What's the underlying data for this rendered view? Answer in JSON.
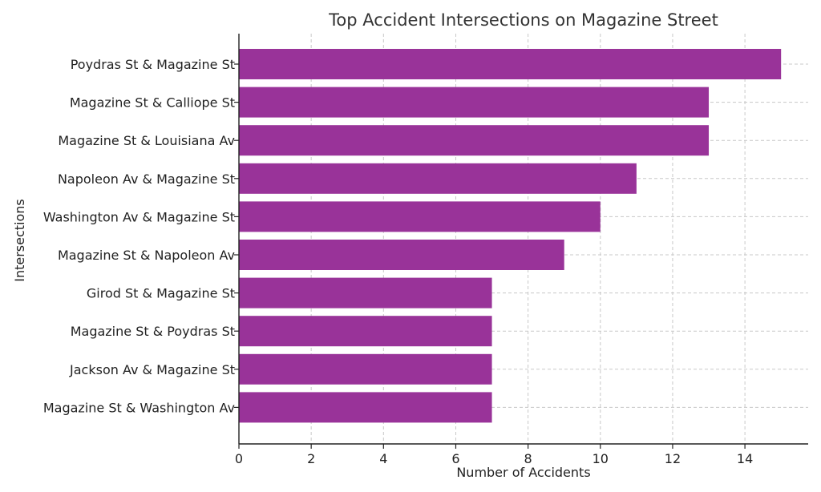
{
  "chart_data": {
    "type": "bar",
    "orientation": "horizontal",
    "title": "Top Accident Intersections on Magazine Street",
    "xlabel": "Number of Accidents",
    "ylabel": "Intersections",
    "xlim": [
      0,
      15.75
    ],
    "xticks": [
      0,
      2,
      4,
      6,
      8,
      10,
      12,
      14
    ],
    "grid": true,
    "bar_color": "#993399",
    "categories": [
      "Poydras St & Magazine St",
      "Magazine St & Calliope St",
      "Magazine St & Louisiana Av",
      "Napoleon Av & Magazine St",
      "Washington Av & Magazine St",
      "Magazine St & Napoleon Av",
      "Girod St & Magazine St",
      "Magazine St & Poydras St",
      "Jackson Av & Magazine St",
      "Magazine St & Washington Av"
    ],
    "values": [
      15,
      13,
      13,
      11,
      10,
      9,
      7,
      7,
      7,
      7
    ]
  }
}
